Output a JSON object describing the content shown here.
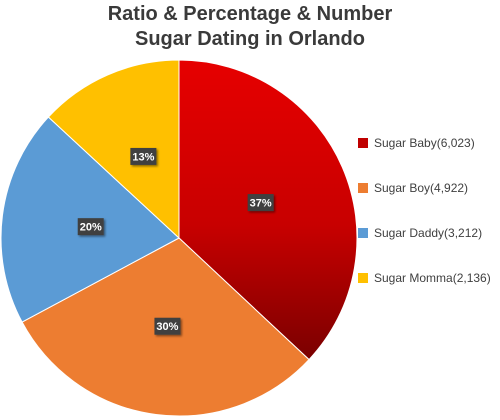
{
  "chart_data": {
    "type": "pie",
    "title": [
      "Ratio & Percentage & Number",
      "Sugar Dating in Orlando"
    ],
    "categories": [
      "Sugar Baby(6,023)",
      "Sugar Boy(4,922)",
      "Sugar Daddy(3,212)",
      "Sugar Momma(2,136)"
    ],
    "values": [
      6023,
      4922,
      3212,
      2136
    ],
    "data_labels": [
      "37%",
      "30%",
      "20%",
      "13%"
    ],
    "colors": [
      "#c00000",
      "#ed7d31",
      "#5b9bd5",
      "#ffc000"
    ],
    "legend_position": "right",
    "start_angle": "12 o'clock",
    "direction": "clockwise"
  }
}
